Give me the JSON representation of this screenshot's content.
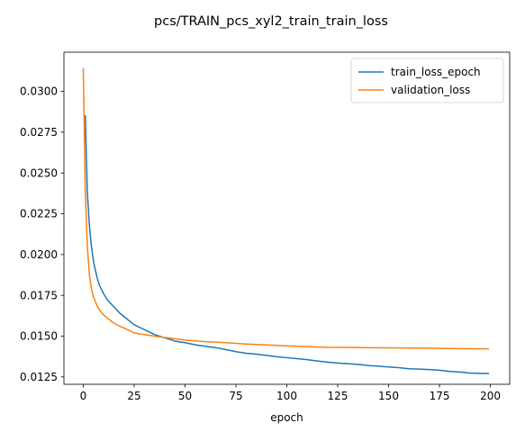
{
  "chart_data": {
    "type": "line",
    "title": "pcs/TRAIN_pcs_xyl2_train_train_loss",
    "xlabel": "epoch",
    "ylabel": "",
    "xlim": [
      -9.5,
      209.5
    ],
    "ylim": [
      0.01205,
      0.0324
    ],
    "xticks": [
      0,
      25,
      50,
      75,
      100,
      125,
      150,
      175,
      200
    ],
    "yticks": [
      0.0125,
      0.015,
      0.0175,
      0.02,
      0.0225,
      0.025,
      0.0275,
      0.03
    ],
    "ytick_labels": [
      "0.0125",
      "0.0150",
      "0.0175",
      "0.0200",
      "0.0225",
      "0.0250",
      "0.0275",
      "0.0300"
    ],
    "grid": false,
    "legend_position": "upper-right",
    "series": [
      {
        "name": "train_loss_epoch",
        "color": "#1f77b4",
        "x": [
          1,
          2,
          3,
          4,
          5,
          6,
          7,
          8,
          10,
          12,
          15,
          18,
          20,
          25,
          30,
          35,
          40,
          45,
          50,
          55,
          60,
          65,
          70,
          75,
          80,
          85,
          90,
          95,
          100,
          105,
          110,
          115,
          120,
          125,
          130,
          135,
          140,
          145,
          150,
          155,
          160,
          165,
          170,
          175,
          180,
          185,
          190,
          195,
          199
        ],
        "y": [
          0.0285,
          0.0238,
          0.0218,
          0.0205,
          0.0196,
          0.019,
          0.0185,
          0.0181,
          0.0176,
          0.0172,
          0.0168,
          0.0164,
          0.0162,
          0.0157,
          0.0154,
          0.0151,
          0.0149,
          0.0147,
          0.0146,
          0.01447,
          0.01438,
          0.0143,
          0.01418,
          0.01405,
          0.01395,
          0.0139,
          0.01382,
          0.01374,
          0.01368,
          0.01362,
          0.01356,
          0.01348,
          0.01341,
          0.01335,
          0.01331,
          0.01327,
          0.0132,
          0.01316,
          0.01311,
          0.01307,
          0.013,
          0.01298,
          0.01295,
          0.01291,
          0.01284,
          0.0128,
          0.01274,
          0.01272,
          0.01271
        ]
      },
      {
        "name": "validation_loss",
        "color": "#ff7f0e",
        "x": [
          0,
          1,
          2,
          3,
          4,
          5,
          6,
          7,
          8,
          10,
          12,
          15,
          18,
          20,
          25,
          30,
          35,
          40,
          45,
          50,
          60,
          70,
          80,
          90,
          100,
          110,
          120,
          130,
          140,
          150,
          160,
          170,
          180,
          190,
          199
        ],
        "y": [
          0.0314,
          0.0238,
          0.0205,
          0.0188,
          0.0179,
          0.0174,
          0.0171,
          0.0168,
          0.0166,
          0.0163,
          0.0161,
          0.0158,
          0.0156,
          0.0155,
          0.0152,
          0.0151,
          0.015,
          0.01492,
          0.01484,
          0.01476,
          0.01466,
          0.0146,
          0.01452,
          0.01446,
          0.0144,
          0.01436,
          0.01432,
          0.01431,
          0.01429,
          0.01428,
          0.01427,
          0.01426,
          0.01424,
          0.01423,
          0.01422
        ]
      }
    ]
  }
}
